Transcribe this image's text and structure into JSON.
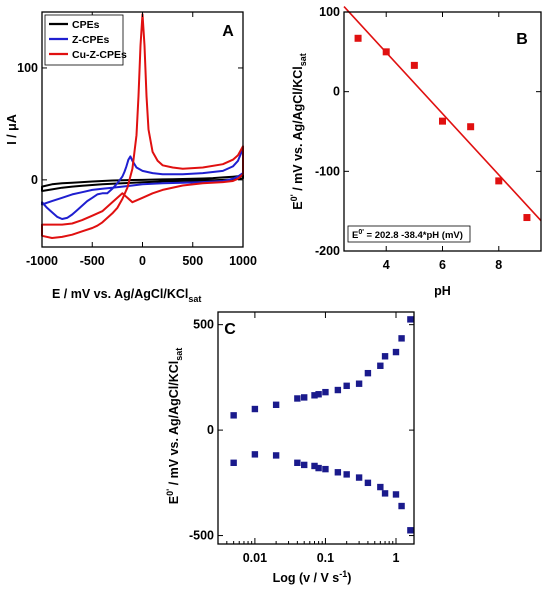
{
  "chart_data": [
    {
      "panel": "A",
      "type": "line",
      "xlabel": "E   /   mV vs. Ag/AgCl/KCl",
      "xlabel_sub": "sat",
      "ylabel": "I   /   μA",
      "xlim": [
        -1000,
        1000
      ],
      "ylim": [
        -60,
        150
      ],
      "xticks": [
        -1000,
        -500,
        0,
        500,
        1000
      ],
      "yticks": [
        0,
        100
      ],
      "legend": {
        "position": "top-left"
      },
      "series": [
        {
          "name": "CPEs",
          "color": "#000000",
          "closed": true,
          "x": [
            -1000,
            -900,
            -800,
            -700,
            -600,
            -500,
            -400,
            -300,
            -200,
            -100,
            0,
            100,
            200,
            300,
            400,
            500,
            600,
            700,
            800,
            900,
            950,
            1000,
            1000,
            950,
            900,
            800,
            700,
            600,
            500,
            400,
            300,
            200,
            100,
            0,
            -100,
            -200,
            -300,
            -400,
            -500,
            -600,
            -700,
            -800,
            -900,
            -1000
          ],
          "y": [
            -6,
            -4,
            -3,
            -2.5,
            -2,
            -1.5,
            -1,
            -0.6,
            -0.3,
            -0.1,
            0,
            0.2,
            0.4,
            0.6,
            0.8,
            1,
            1.2,
            1.6,
            2.2,
            2.8,
            3.2,
            4,
            1.5,
            0.8,
            0.4,
            0,
            -0.3,
            -0.5,
            -0.7,
            -0.9,
            -1.1,
            -1.4,
            -1.8,
            -2.2,
            -2.6,
            -3,
            -3.5,
            -4,
            -4.6,
            -5.2,
            -6,
            -7,
            -8.5,
            -10
          ]
        },
        {
          "name": "Z-CPEs",
          "color": "#1f1fd0",
          "closed": true,
          "x": [
            -1000,
            -950,
            -900,
            -850,
            -800,
            -750,
            -700,
            -650,
            -600,
            -550,
            -500,
            -450,
            -400,
            -350,
            -300,
            -250,
            -200,
            -180,
            -160,
            -140,
            -120,
            -100,
            -60,
            0,
            100,
            200,
            400,
            600,
            800,
            900,
            950,
            1000,
            1000,
            950,
            900,
            800,
            600,
            400,
            200,
            100,
            0,
            -100,
            -200,
            -300,
            -400,
            -500,
            -600,
            -700,
            -800,
            -900,
            -1000
          ],
          "y": [
            -20,
            -25,
            -29,
            -33,
            -35,
            -34,
            -31,
            -27,
            -23,
            -19,
            -16,
            -13,
            -12,
            -12,
            -8,
            -3,
            3,
            7,
            12,
            18,
            21,
            17,
            11,
            8,
            6,
            5,
            5,
            6,
            8,
            12,
            17,
            28,
            6,
            3,
            1,
            -1,
            -2,
            -2.5,
            -3,
            -3.5,
            -4,
            -5,
            -6,
            -7,
            -8,
            -9,
            -11,
            -13,
            -16,
            -19,
            -22
          ]
        },
        {
          "name": "Cu-Z-CPEs",
          "color": "#e01010",
          "closed": true,
          "x": [
            -1000,
            -900,
            -800,
            -700,
            -600,
            -500,
            -450,
            -400,
            -350,
            -300,
            -250,
            -200,
            -150,
            -100,
            -60,
            -40,
            -20,
            0,
            20,
            40,
            60,
            100,
            150,
            200,
            300,
            400,
            600,
            800,
            900,
            950,
            1000,
            1000,
            950,
            900,
            800,
            600,
            400,
            200,
            100,
            0,
            -100,
            -200,
            -300,
            -400,
            -500,
            -600,
            -700,
            -800,
            -900,
            -1000
          ],
          "y": [
            -50,
            -52,
            -51,
            -49,
            -46,
            -43,
            -41,
            -38,
            -34,
            -30,
            -25,
            -17,
            -7,
            10,
            40,
            75,
            120,
            148,
            120,
            75,
            45,
            25,
            17,
            13,
            11,
            10,
            11,
            14,
            18,
            22,
            30,
            5,
            1,
            -1,
            -2,
            -3,
            -5,
            -9,
            -12,
            -16,
            -20,
            -12,
            -20,
            -28,
            -32,
            -36,
            -39,
            -40,
            -40,
            -40
          ]
        }
      ]
    },
    {
      "panel": "B",
      "type": "scatter",
      "xlabel": "pH",
      "ylabel": "E",
      "ylabel_sup": "0'",
      "ylabel_rest": "   /   mV vs. Ag/AgCl/KCl",
      "ylabel_sub": "sat",
      "xlim": [
        2.5,
        9.5
      ],
      "ylim": [
        -200,
        100
      ],
      "xticks": [
        4,
        6,
        8
      ],
      "yticks": [
        -200,
        -100,
        0,
        100
      ],
      "marker_color": "#e01010",
      "fit_color": "#e01010",
      "x": [
        3,
        4,
        5,
        6,
        7,
        8,
        9
      ],
      "y": [
        67,
        50,
        33,
        -37,
        -44,
        -112,
        -158
      ],
      "fit": {
        "intercept": 202.8,
        "slope": -38.4
      },
      "annotation": {
        "pre": "E",
        "sup": "0'",
        "post": " = 202.8 -38.4*pH (mV)",
        "position": "bottom-left"
      }
    },
    {
      "panel": "C",
      "type": "scatter",
      "xlabel": "Log (v   /   V s",
      "xlabel_sup": "-1",
      "xlabel_end": ")",
      "ylabel": "E",
      "ylabel_sup": "0'",
      "ylabel_rest": "   /   mV vs. Ag/AgCl/KCl",
      "ylabel_sub": "sat",
      "xscale": "log",
      "xlim": [
        0.003,
        1.8
      ],
      "ylim": [
        -540,
        560
      ],
      "xticks": [
        0.01,
        0.1,
        1
      ],
      "xticklabels": [
        "0.01",
        "0.1",
        "1"
      ],
      "yticks": [
        -500,
        0,
        500
      ],
      "marker_color": "#1a1a8c",
      "series": [
        {
          "x": [
            0.005,
            0.01,
            0.02,
            0.04,
            0.05,
            0.07,
            0.08,
            0.1,
            0.15,
            0.2,
            0.3,
            0.4,
            0.6,
            0.7,
            1.0,
            1.2,
            1.6
          ],
          "y": [
            70,
            100,
            120,
            150,
            155,
            165,
            170,
            180,
            190,
            210,
            220,
            270,
            305,
            350,
            370,
            435,
            525
          ]
        },
        {
          "x": [
            0.005,
            0.01,
            0.02,
            0.04,
            0.05,
            0.07,
            0.08,
            0.1,
            0.15,
            0.2,
            0.3,
            0.4,
            0.6,
            0.7,
            1.0,
            1.2,
            1.6
          ],
          "y": [
            -155,
            -115,
            -120,
            -155,
            -165,
            -170,
            -180,
            -185,
            -200,
            -210,
            -225,
            -250,
            -270,
            -300,
            -305,
            -360,
            -475
          ]
        }
      ]
    }
  ]
}
